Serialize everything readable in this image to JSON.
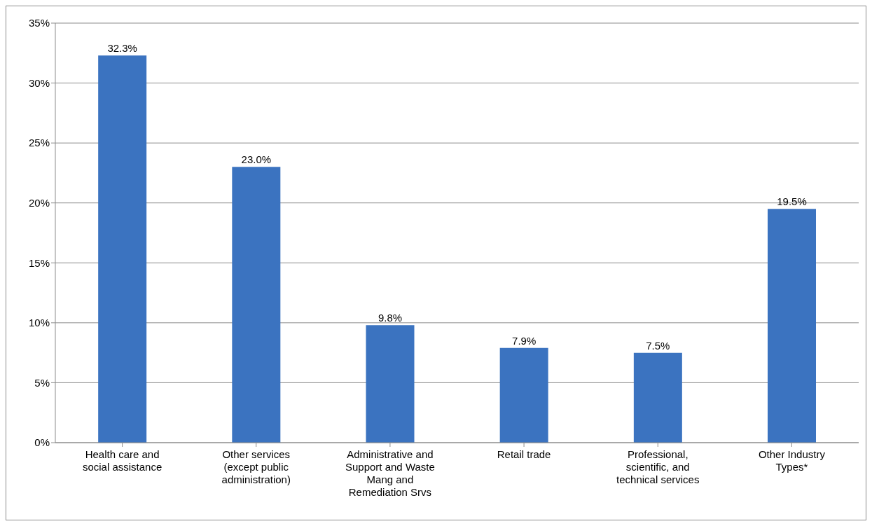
{
  "chart_data": {
    "type": "bar",
    "categories": [
      "Health care and social assistance",
      "Other services (except public administration)",
      "Administrative and Support and Waste Mang and Remediation Srvs",
      "Retail trade",
      "Professional, scientific, and technical services",
      "Other Industry Types*"
    ],
    "values": [
      32.3,
      23.0,
      9.8,
      7.9,
      7.5,
      19.5
    ],
    "value_labels": [
      "32.3%",
      "23.0%",
      "9.8%",
      "7.9%",
      "7.5%",
      "19.5%"
    ],
    "color": "#3b73c0",
    "ylim": [
      0,
      35
    ],
    "yticks": [
      {
        "value": 0,
        "label": "0%"
      },
      {
        "value": 5,
        "label": "5%"
      },
      {
        "value": 10,
        "label": "10%"
      },
      {
        "value": 15,
        "label": "15%"
      },
      {
        "value": 20,
        "label": "20%"
      },
      {
        "value": 25,
        "label": "25%"
      },
      {
        "value": 30,
        "label": "30%"
      },
      {
        "value": 35,
        "label": "35%"
      }
    ],
    "grid": "y"
  }
}
